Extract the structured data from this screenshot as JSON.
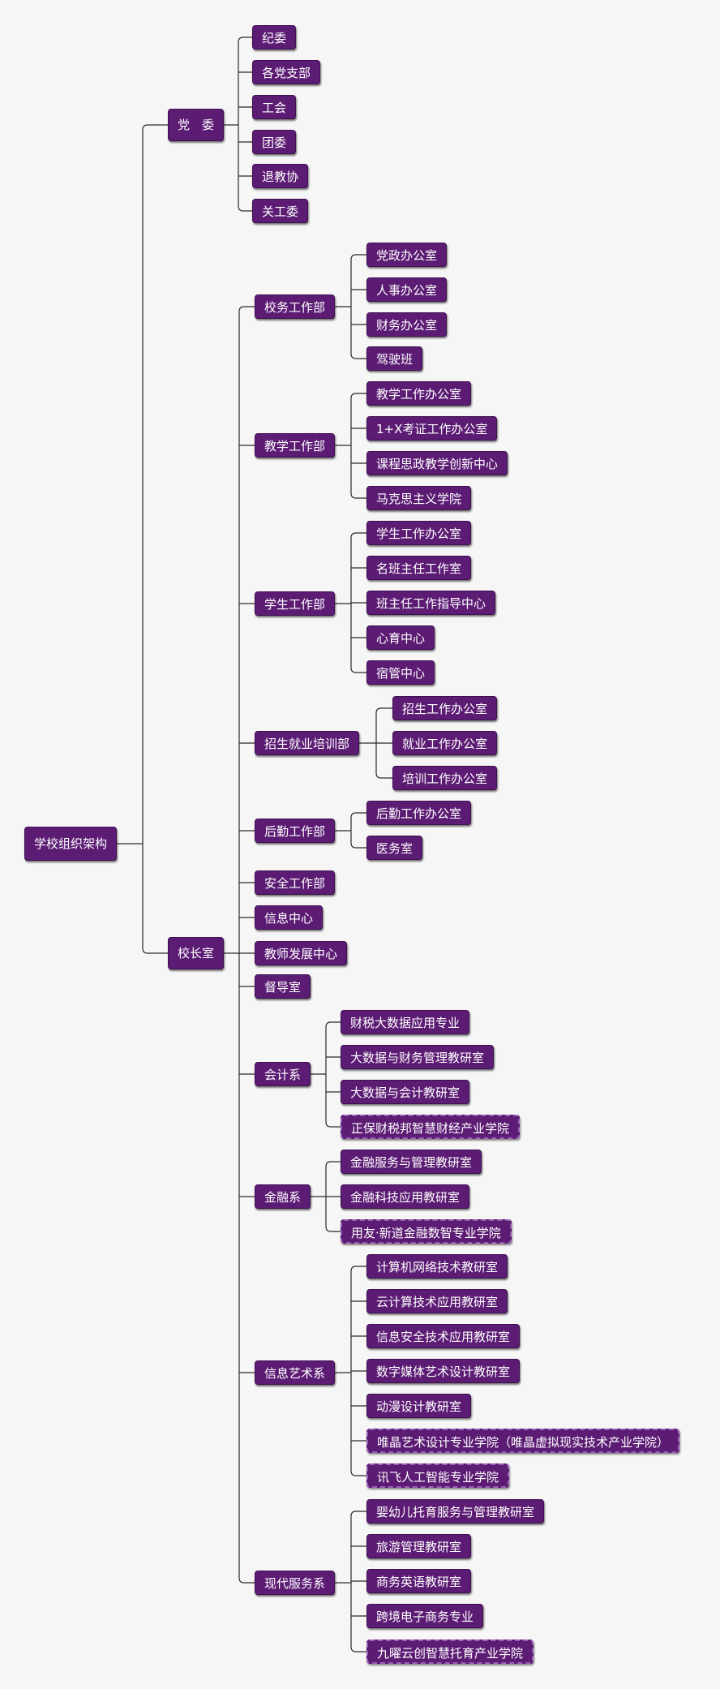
{
  "colors": {
    "node_bg": "#5c1c74",
    "node_text": "#ffffff",
    "line": "#2a2a2a",
    "dashed_border": "#9a5fb4",
    "background": "#f6f6f6"
  },
  "root": {
    "label": "学校组织架构",
    "children": [
      {
        "label": "党　委",
        "children": [
          {
            "label": "纪委"
          },
          {
            "label": "各党支部"
          },
          {
            "label": "工会"
          },
          {
            "label": "团委"
          },
          {
            "label": "退教协"
          },
          {
            "label": "关工委"
          }
        ]
      },
      {
        "label": "校长室",
        "children": [
          {
            "label": "校务工作部",
            "children": [
              {
                "label": "党政办公室"
              },
              {
                "label": "人事办公室"
              },
              {
                "label": "财务办公室"
              },
              {
                "label": "驾驶班"
              }
            ]
          },
          {
            "label": "教学工作部",
            "children": [
              {
                "label": "教学工作办公室"
              },
              {
                "label": "1+X考证工作办公室"
              },
              {
                "label": "课程思政教学创新中心"
              },
              {
                "label": "马克思主义学院"
              }
            ]
          },
          {
            "label": "学生工作部",
            "children": [
              {
                "label": "学生工作办公室"
              },
              {
                "label": "名班主任工作室"
              },
              {
                "label": "班主任工作指导中心"
              },
              {
                "label": "心育中心"
              },
              {
                "label": "宿管中心"
              }
            ]
          },
          {
            "label": "招生就业培训部",
            "children": [
              {
                "label": "招生工作办公室"
              },
              {
                "label": "就业工作办公室"
              },
              {
                "label": "培训工作办公室"
              }
            ]
          },
          {
            "label": "后勤工作部",
            "children": [
              {
                "label": "后勤工作办公室"
              },
              {
                "label": "医务室"
              }
            ]
          },
          {
            "label": "安全工作部"
          },
          {
            "label": "信息中心"
          },
          {
            "label": "教师发展中心"
          },
          {
            "label": "督导室"
          },
          {
            "label": "会计系",
            "children": [
              {
                "label": "财税大数据应用专业"
              },
              {
                "label": "大数据与财务管理教研室"
              },
              {
                "label": "大数据与会计教研室"
              },
              {
                "label": "正保财税邦智慧财经产业学院",
                "dashed": true
              }
            ]
          },
          {
            "label": "金融系",
            "children": [
              {
                "label": "金融服务与管理教研室"
              },
              {
                "label": "金融科技应用教研室"
              },
              {
                "label": "用友·新道金融数智专业学院",
                "dashed": true
              }
            ]
          },
          {
            "label": "信息艺术系",
            "children": [
              {
                "label": "计算机网络技术教研室"
              },
              {
                "label": "云计算技术应用教研室"
              },
              {
                "label": "信息安全技术应用教研室"
              },
              {
                "label": "数字媒体艺术设计教研室"
              },
              {
                "label": "动漫设计教研室"
              },
              {
                "label": "唯晶艺术设计专业学院（唯晶虚拟现实技术产业学院）",
                "dashed": true
              },
              {
                "label": "讯飞人工智能专业学院",
                "dashed": true
              }
            ]
          },
          {
            "label": "现代服务系",
            "children": [
              {
                "label": "婴幼儿托育服务与管理教研室"
              },
              {
                "label": "旅游管理教研室"
              },
              {
                "label": "商务英语教研室"
              },
              {
                "label": "跨境电子商务专业"
              },
              {
                "label": "九曜云创智慧托育产业学院",
                "dashed": true
              }
            ]
          }
        ]
      }
    ]
  }
}
